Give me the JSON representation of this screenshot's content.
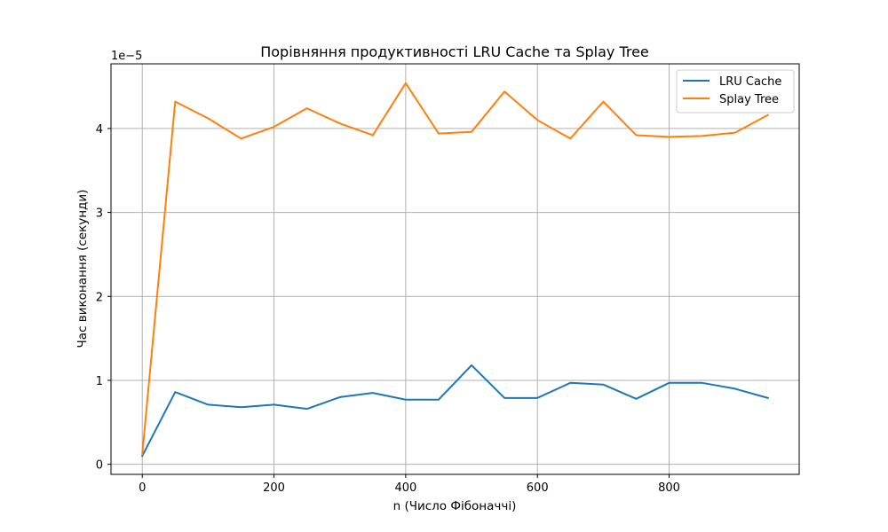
{
  "chart_data": {
    "type": "line",
    "title": "Порівняння продуктивності LRU Cache та Splay Tree",
    "xlabel": "n (Число Фібоначчі)",
    "ylabel": "Час виконання (секунди)",
    "y_offset_text": "1e−5",
    "y_scale": 1e-05,
    "xlim": [
      -47.5,
      997.5
    ],
    "ylim": [
      -0.12,
      4.77
    ],
    "grid": true,
    "legend_position": "top-right",
    "x_ticks": [
      0,
      200,
      400,
      600,
      800
    ],
    "x_tick_labels": [
      "0",
      "200",
      "400",
      "600",
      "800"
    ],
    "y_ticks": [
      0,
      1,
      2,
      3,
      4
    ],
    "y_tick_labels": [
      "0",
      "1",
      "2",
      "3",
      "4"
    ],
    "x": [
      0,
      50,
      100,
      150,
      200,
      250,
      300,
      350,
      400,
      450,
      500,
      550,
      600,
      650,
      700,
      750,
      800,
      850,
      900,
      950
    ],
    "series": [
      {
        "name": "LRU Cache",
        "color": "#1f77b4",
        "values": [
          0.1,
          0.86,
          0.71,
          0.68,
          0.71,
          0.66,
          0.8,
          0.85,
          0.77,
          0.77,
          1.18,
          0.79,
          0.79,
          0.97,
          0.95,
          0.78,
          0.97,
          0.97,
          0.9,
          0.79
        ]
      },
      {
        "name": "Splay Tree",
        "color": "#ff7f0e",
        "values": [
          0.12,
          4.32,
          4.12,
          3.88,
          4.02,
          4.24,
          4.06,
          3.92,
          4.54,
          3.94,
          3.96,
          4.44,
          4.1,
          3.88,
          4.32,
          3.92,
          3.9,
          3.91,
          3.95,
          4.16
        ]
      }
    ]
  }
}
